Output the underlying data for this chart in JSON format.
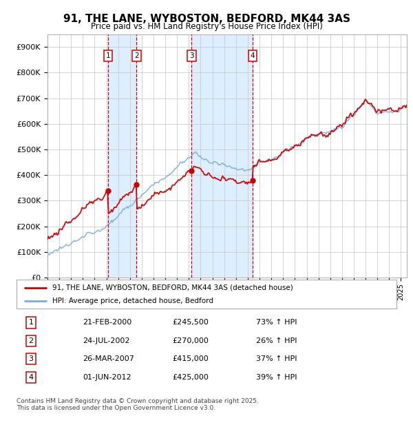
{
  "title": "91, THE LANE, WYBOSTON, BEDFORD, MK44 3AS",
  "subtitle": "Price paid vs. HM Land Registry's House Price Index (HPI)",
  "legend_house": "91, THE LANE, WYBOSTON, BEDFORD, MK44 3AS (detached house)",
  "legend_hpi": "HPI: Average price, detached house, Bedford",
  "house_color": "#cc0000",
  "hpi_color": "#7aaddb",
  "transaction_color": "#cc0000",
  "vline_color": "#cc0000",
  "vshade_color": "#ddeeff",
  "xlim_start": 1995.0,
  "xlim_end": 2025.5,
  "ylim_min": 0,
  "ylim_max": 950000,
  "transactions": [
    {
      "num": 1,
      "date_year": 2000.13,
      "price": 245500,
      "label": "21-FEB-2000",
      "amount": "£245,500",
      "pct": "73% ↑ HPI"
    },
    {
      "num": 2,
      "date_year": 2002.56,
      "price": 270000,
      "label": "24-JUL-2002",
      "amount": "£270,000",
      "pct": "26% ↑ HPI"
    },
    {
      "num": 3,
      "date_year": 2007.23,
      "price": 415000,
      "label": "26-MAR-2007",
      "amount": "£415,000",
      "pct": "37% ↑ HPI"
    },
    {
      "num": 4,
      "date_year": 2012.42,
      "price": 425000,
      "label": "01-JUN-2012",
      "amount": "£425,000",
      "pct": "39% ↑ HPI"
    }
  ],
  "footnote": "Contains HM Land Registry data © Crown copyright and database right 2025.\nThis data is licensed under the Open Government Licence v3.0.",
  "background_color": "#ffffff",
  "grid_color": "#cccccc",
  "dot_color": "#cc0000"
}
